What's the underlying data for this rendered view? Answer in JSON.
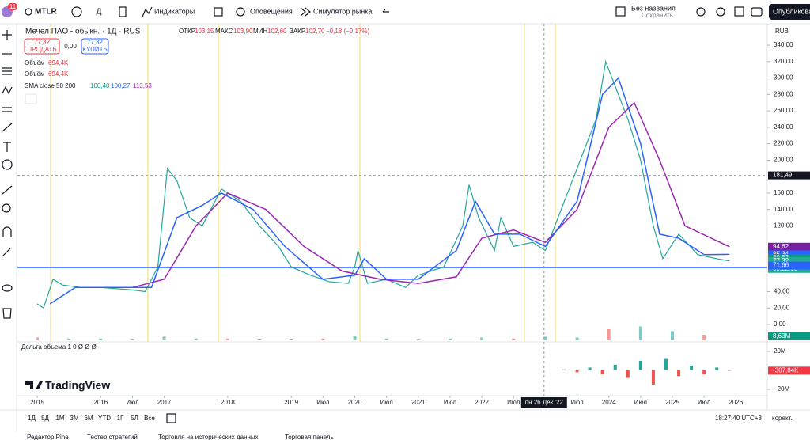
{
  "top_bar": {
    "badge": "11",
    "symbol": "MTLR",
    "interval": "Д",
    "indicators": "Индикаторы",
    "alerts": "Оповещения",
    "replay": "Симулятор рынка",
    "layout_name": "Без названия",
    "layout_status": "Сохранить",
    "publish": "Опубликовать"
  },
  "legend": {
    "name": "Мечел ПАО - обыкн. · 1Д · RUS",
    "o_label": "ОТКР",
    "o": "103,15",
    "h_label": "МАКС",
    "h": "103,90",
    "l_label": "МИН",
    "l": "102,60",
    "c_label": "ЗАКР",
    "c": "102,70",
    "change": "−0,18 (−0,17%)",
    "sell_price": "77,32",
    "sell": "ПРОДАТЬ",
    "spread": "0,00",
    "buy_price": "77,32",
    "buy": "КУПИТЬ",
    "vol1_name": "Объём",
    "vol1": "694,4K",
    "vol2_name": "Объём",
    "vol2": "694,4K",
    "sma_name": "SMA close 50 200",
    "sma1": "100,40",
    "sma2": "100,27",
    "sma3": "113,53"
  },
  "chart": {
    "currency": "RUB",
    "yticks": [
      {
        "value": 340,
        "label": "340,00"
      },
      {
        "value": 320,
        "label": "320,00"
      },
      {
        "value": 300,
        "label": "300,00"
      },
      {
        "value": 280,
        "label": "280,00"
      },
      {
        "value": 260,
        "label": "260,00"
      },
      {
        "value": 240,
        "label": "240,00"
      },
      {
        "value": 220,
        "label": "220,00"
      },
      {
        "value": 200,
        "label": "200,00"
      },
      {
        "value": 160,
        "label": "160,00"
      },
      {
        "value": 140,
        "label": "140,00"
      },
      {
        "value": 120,
        "label": "120,00"
      },
      {
        "value": 40,
        "label": "40,00"
      },
      {
        "value": 20,
        "label": "20,00"
      },
      {
        "value": 0,
        "label": "0,00"
      }
    ],
    "badges": [
      {
        "value": 181.49,
        "label": "181,49",
        "color": "#131722"
      },
      {
        "value": 94.62,
        "label": "94,62",
        "color": "#7b1fa2"
      },
      {
        "value": 85.34,
        "label": "85,34",
        "color": "#2962ff"
      },
      {
        "value": 80.83,
        "label": "80,83",
        "color": "#089981"
      },
      {
        "value": 77.32,
        "label": "77,32",
        "color": "#22ab94"
      },
      {
        "value": 71.66,
        "label": "71,66",
        "color": "#2962ff"
      }
    ],
    "countdown": "05:22:18",
    "volume_badge": "8,63M",
    "xticks": [
      2015,
      2016,
      {
        "value": 2016.5,
        "label": "Июл"
      },
      2017,
      2018,
      2019,
      {
        "value": 2019.5,
        "label": "Июл"
      },
      2020,
      {
        "value": 2020.5,
        "label": "Июл"
      },
      2021,
      {
        "value": 2021.5,
        "label": "Июл"
      },
      2022,
      {
        "value": 2022.5,
        "label": "Июл"
      },
      {
        "value": 2023.5,
        "label": "Июл"
      },
      2024,
      {
        "value": 2024.5,
        "label": "Июл"
      },
      2025,
      {
        "value": 2025.5,
        "label": "Июл"
      },
      2026
    ],
    "crosshair": {
      "value": 2022.98,
      "label": "пн 26 Дек '22"
    },
    "price": {
      "color": "#26a69a",
      "x": [
        2015.0,
        2015.1,
        2015.25,
        2015.4,
        2015.7,
        2016.0,
        2016.5,
        2016.7,
        2016.9,
        2017.05,
        2017.2,
        2017.4,
        2017.6,
        2017.9,
        2018.2,
        2018.5,
        2018.8,
        2019.0,
        2019.3,
        2019.6,
        2019.9,
        2020.0,
        2020.05,
        2020.2,
        2020.5,
        2020.8,
        2021.0,
        2021.4,
        2021.7,
        2021.8,
        2021.95,
        2022.2,
        2022.3,
        2022.5,
        2022.8,
        2023.0,
        2023.3,
        2023.6,
        2023.8,
        2023.95,
        2024.1,
        2024.3,
        2024.5,
        2024.7,
        2024.85,
        2025.1,
        2025.4,
        2025.7,
        2025.9
      ],
      "values": [
        25,
        20,
        55,
        48,
        45,
        45,
        42,
        40,
        70,
        190,
        175,
        130,
        120,
        165,
        150,
        120,
        95,
        70,
        60,
        52,
        50,
        70,
        90,
        50,
        55,
        45,
        60,
        70,
        120,
        170,
        130,
        90,
        130,
        95,
        100,
        90,
        150,
        210,
        250,
        320,
        290,
        250,
        200,
        120,
        80,
        110,
        85,
        80,
        77.32
      ]
    },
    "sma50": {
      "color": "#2962ff",
      "x": [
        2015.2,
        2015.6,
        2016.0,
        2016.8,
        2017.2,
        2017.6,
        2017.9,
        2018.4,
        2018.9,
        2019.5,
        2020.0,
        2020.15,
        2020.5,
        2021.0,
        2021.6,
        2021.9,
        2022.2,
        2022.6,
        2023.0,
        2023.5,
        2023.9,
        2024.15,
        2024.5,
        2024.8,
        2025.1,
        2025.5,
        2025.9
      ],
      "values": [
        25,
        45,
        45,
        45,
        130,
        145,
        160,
        140,
        95,
        55,
        60,
        80,
        55,
        55,
        90,
        150,
        110,
        110,
        95,
        150,
        280,
        300,
        220,
        110,
        105,
        85,
        85.34
      ]
    },
    "sma200": {
      "color": "#9c27b0",
      "x": [
        2015.8,
        2016.5,
        2017.0,
        2017.5,
        2018.0,
        2018.6,
        2019.2,
        2019.8,
        2020.4,
        2021.0,
        2021.6,
        2022.0,
        2022.5,
        2023.0,
        2023.5,
        2024.0,
        2024.4,
        2024.8,
        2025.2,
        2025.9
      ],
      "values": [
        45,
        45,
        55,
        120,
        160,
        140,
        95,
        65,
        55,
        50,
        58,
        105,
        115,
        100,
        140,
        240,
        270,
        200,
        120,
        94.62
      ]
    },
    "volume": {
      "ylim": [
        0,
        60
      ],
      "x": [
        2015.0,
        2015.5,
        2016.0,
        2016.5,
        2017.0,
        2017.5,
        2018.0,
        2018.5,
        2019.0,
        2019.5,
        2020.0,
        2020.5,
        2021.0,
        2021.5,
        2022.0,
        2022.5,
        2023.0,
        2023.5,
        2024.0,
        2024.5,
        2025.0,
        2025.5
      ],
      "values": [
        3,
        2,
        2,
        1,
        4,
        2,
        2,
        1,
        1,
        2,
        5,
        2,
        1,
        2,
        3,
        2,
        4,
        3,
        12,
        15,
        10,
        6
      ]
    },
    "delta": {
      "title": "Дельта объема 1 0 Ø Ø Ø",
      "yticks": [
        {
          "value": 20,
          "label": "20M"
        },
        {
          "value": -20,
          "label": "−20M"
        }
      ],
      "badge": {
        "value": -0.30784,
        "label": "−307,84K"
      },
      "x": [
        2023.3,
        2023.5,
        2023.7,
        2023.9,
        2024.1,
        2024.3,
        2024.5,
        2024.7,
        2024.9,
        2025.1,
        2025.3,
        2025.5,
        2025.7,
        2025.9
      ],
      "values": [
        1,
        -2,
        3,
        -4,
        6,
        -8,
        10,
        -15,
        12,
        -6,
        5,
        -4,
        3,
        -0.3
      ]
    }
  },
  "bottom_bar": {
    "ranges": [
      "1Д",
      "5Д",
      "1М",
      "3М",
      "6М",
      "YTD",
      "1Г",
      "5Л",
      "Все"
    ],
    "time": "18:27:40 UTC+3",
    "adjust": "корект."
  },
  "logo": "TradingView",
  "tabs": [
    "Редактор Pine",
    "Тестер стратегий",
    "Торговля на исторических данных",
    "Торговая панель"
  ]
}
